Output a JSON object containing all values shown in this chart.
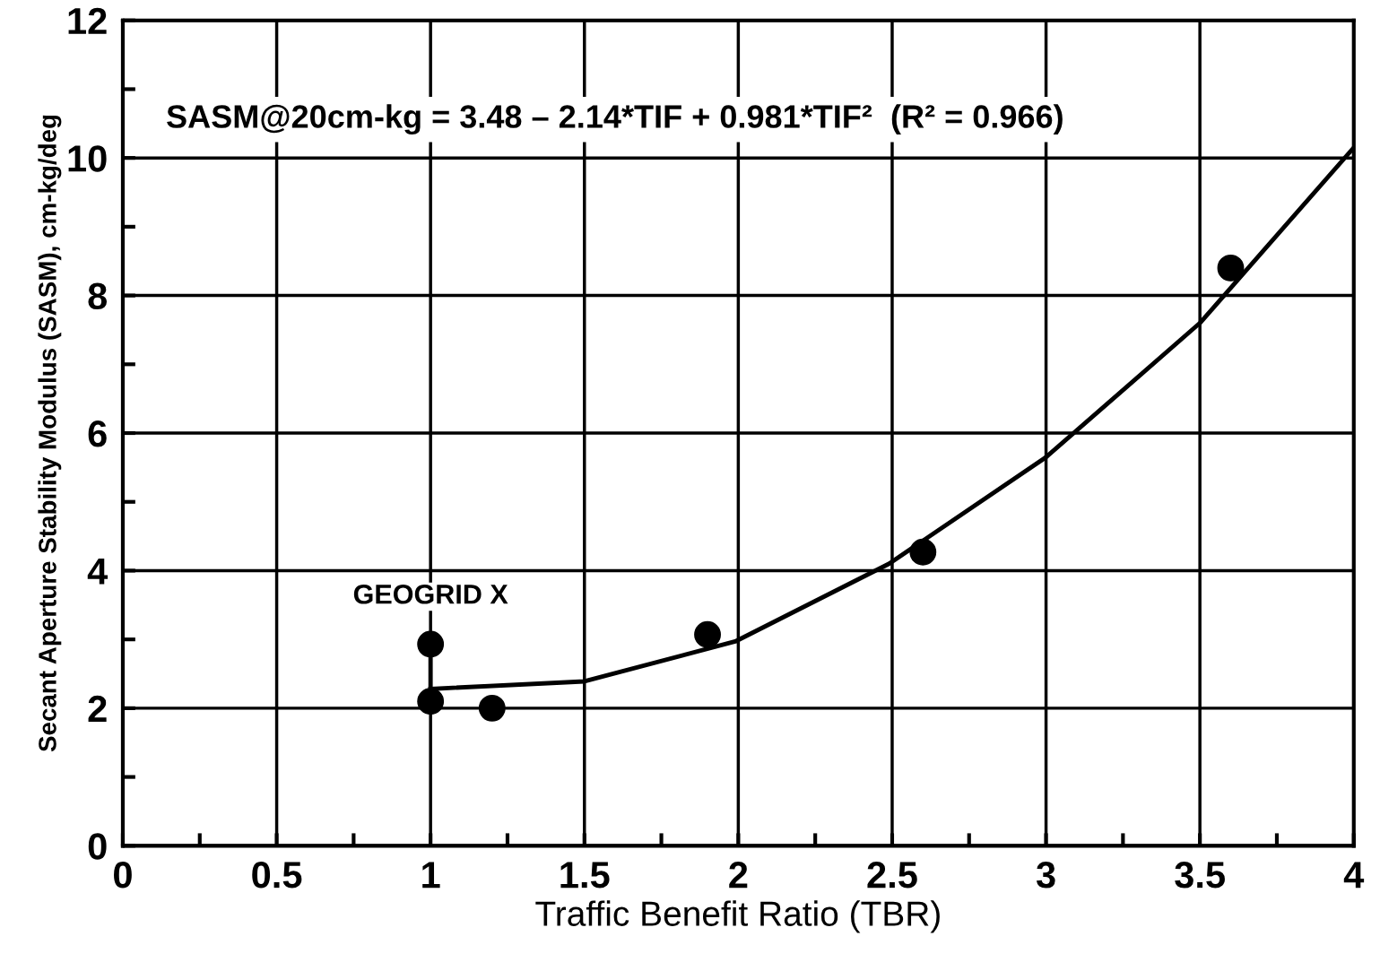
{
  "chart_data": {
    "type": "scatter",
    "xlabel": "Traffic Benefit Ratio (TBR)",
    "ylabel": "Secant Aperture Stability Modulus (SASM), cm-kg/deg",
    "series": [
      {
        "color": "#000000",
        "x": [
          1.0,
          1.0,
          1.2,
          1.9,
          2.6,
          3.6
        ],
        "values": [
          2.93,
          2.1,
          2.0,
          3.07,
          4.27,
          8.4
        ],
        "marker": "circle"
      },
      {
        "type": "line",
        "color": "#000000",
        "x": [
          1.0,
          1.5,
          1.99,
          2.49,
          3.0,
          3.5,
          4.0
        ],
        "values": [
          2.28,
          2.39,
          2.97,
          4.1,
          5.65,
          7.6,
          10.15
        ],
        "marker": "none",
        "line_style": "solid"
      },
      {
        "type": "line",
        "color": "#000000",
        "x": [
          1.0,
          1.0
        ],
        "values": [
          2.1,
          2.93
        ],
        "marker": "none",
        "line_style": "solid"
      }
    ],
    "xlim": [
      0,
      4
    ],
    "ylim": [
      0,
      12
    ],
    "xticks": [
      0,
      {
        "value": 0.25,
        "label": null
      },
      0.5,
      {
        "value": 0.75,
        "label": null
      },
      1,
      {
        "value": 1.25,
        "label": null
      },
      1.5,
      {
        "value": 1.75,
        "label": null
      },
      2,
      {
        "value": 2.25,
        "label": null
      },
      2.5,
      {
        "value": 2.75,
        "label": null
      },
      3,
      {
        "value": 3.25,
        "label": null
      },
      3.5,
      {
        "value": 3.75,
        "label": null
      },
      4
    ],
    "yticks": [
      0,
      {
        "value": 1,
        "label": null
      },
      2,
      {
        "value": 3,
        "label": null
      },
      4,
      {
        "value": 5,
        "label": null
      },
      6,
      {
        "value": 7,
        "label": null
      },
      8,
      {
        "value": 9,
        "label": null
      },
      10,
      {
        "value": 11,
        "label": null
      },
      12
    ],
    "grid": true,
    "annotations": [
      "SASM@20cm-kg = 3.48 – 2.14*TIF + 0.981*TIF²  (R² = 0.966)",
      {
        "text": "GEOGRID X",
        "x": 1.0,
        "y": 2.93
      }
    ]
  }
}
